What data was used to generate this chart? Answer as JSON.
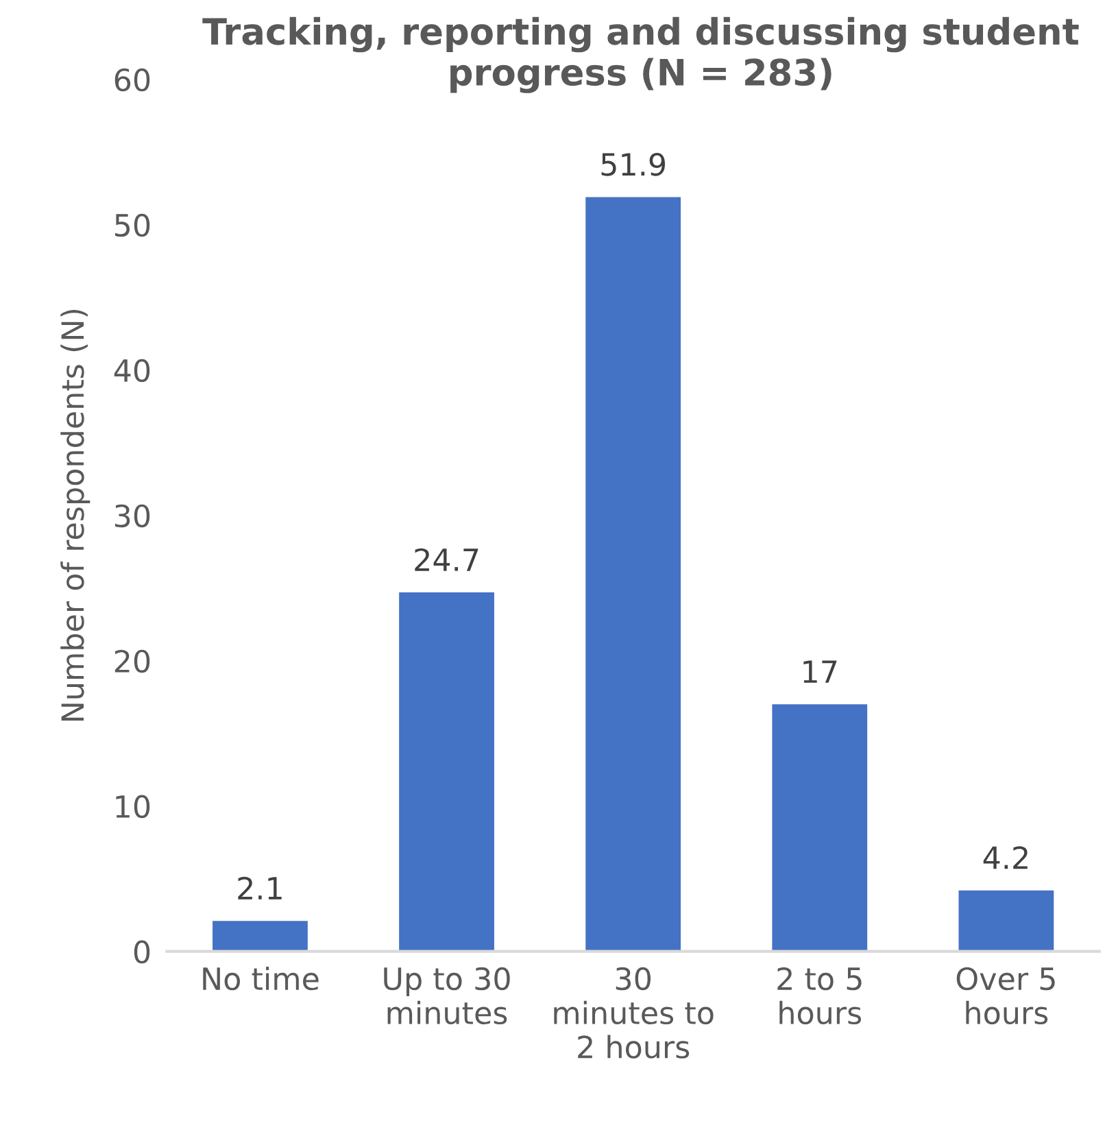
{
  "chart_data": {
    "type": "bar",
    "title": "Tracking, reporting and discussing student progress (N = 283)",
    "ylabel": "Number of respondents (N)",
    "categories": [
      "No time",
      "Up to 30\nminutes",
      "30\nminutes to\n2 hours",
      "2 to 5\nhours",
      "Over 5\nhours"
    ],
    "values": [
      2.1,
      24.7,
      51.9,
      17,
      4.2
    ],
    "color": "#4472c4",
    "ylim": [
      0,
      60
    ],
    "yticks": [
      0,
      10,
      20,
      30,
      40,
      50,
      60
    ],
    "grid": false,
    "data_labels": true
  }
}
